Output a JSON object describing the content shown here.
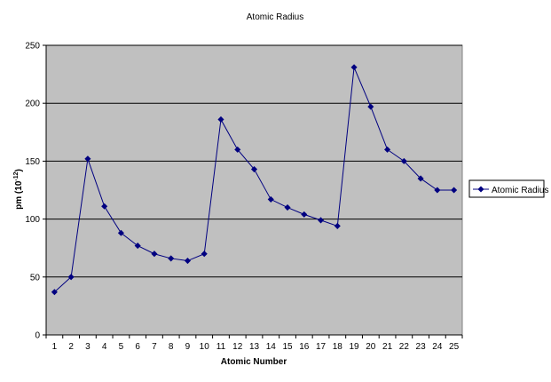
{
  "chart_data": {
    "type": "line",
    "title": "Atomic Radius",
    "xlabel": "Atomic Number",
    "ylabel": "pm (10",
    "ylabel_exponent": "-12",
    "ylabel_suffix": ")",
    "x": [
      1,
      2,
      3,
      4,
      5,
      6,
      7,
      8,
      9,
      10,
      11,
      12,
      13,
      14,
      15,
      16,
      17,
      18,
      19,
      20,
      21,
      22,
      23,
      24,
      25
    ],
    "series": [
      {
        "name": "Atomic Radius",
        "values": [
          37,
          50,
          152,
          111,
          88,
          77,
          70,
          66,
          64,
          70,
          186,
          160,
          143,
          117,
          110,
          104,
          99,
          94,
          231,
          197,
          160,
          150,
          135,
          125,
          125
        ],
        "color": "#000080"
      }
    ],
    "ylim": [
      0,
      250
    ],
    "yticks": [
      0,
      50,
      100,
      150,
      200,
      250
    ],
    "grid": "horizontal",
    "plot_background": "#c0c0c0",
    "legend_position": "right"
  }
}
